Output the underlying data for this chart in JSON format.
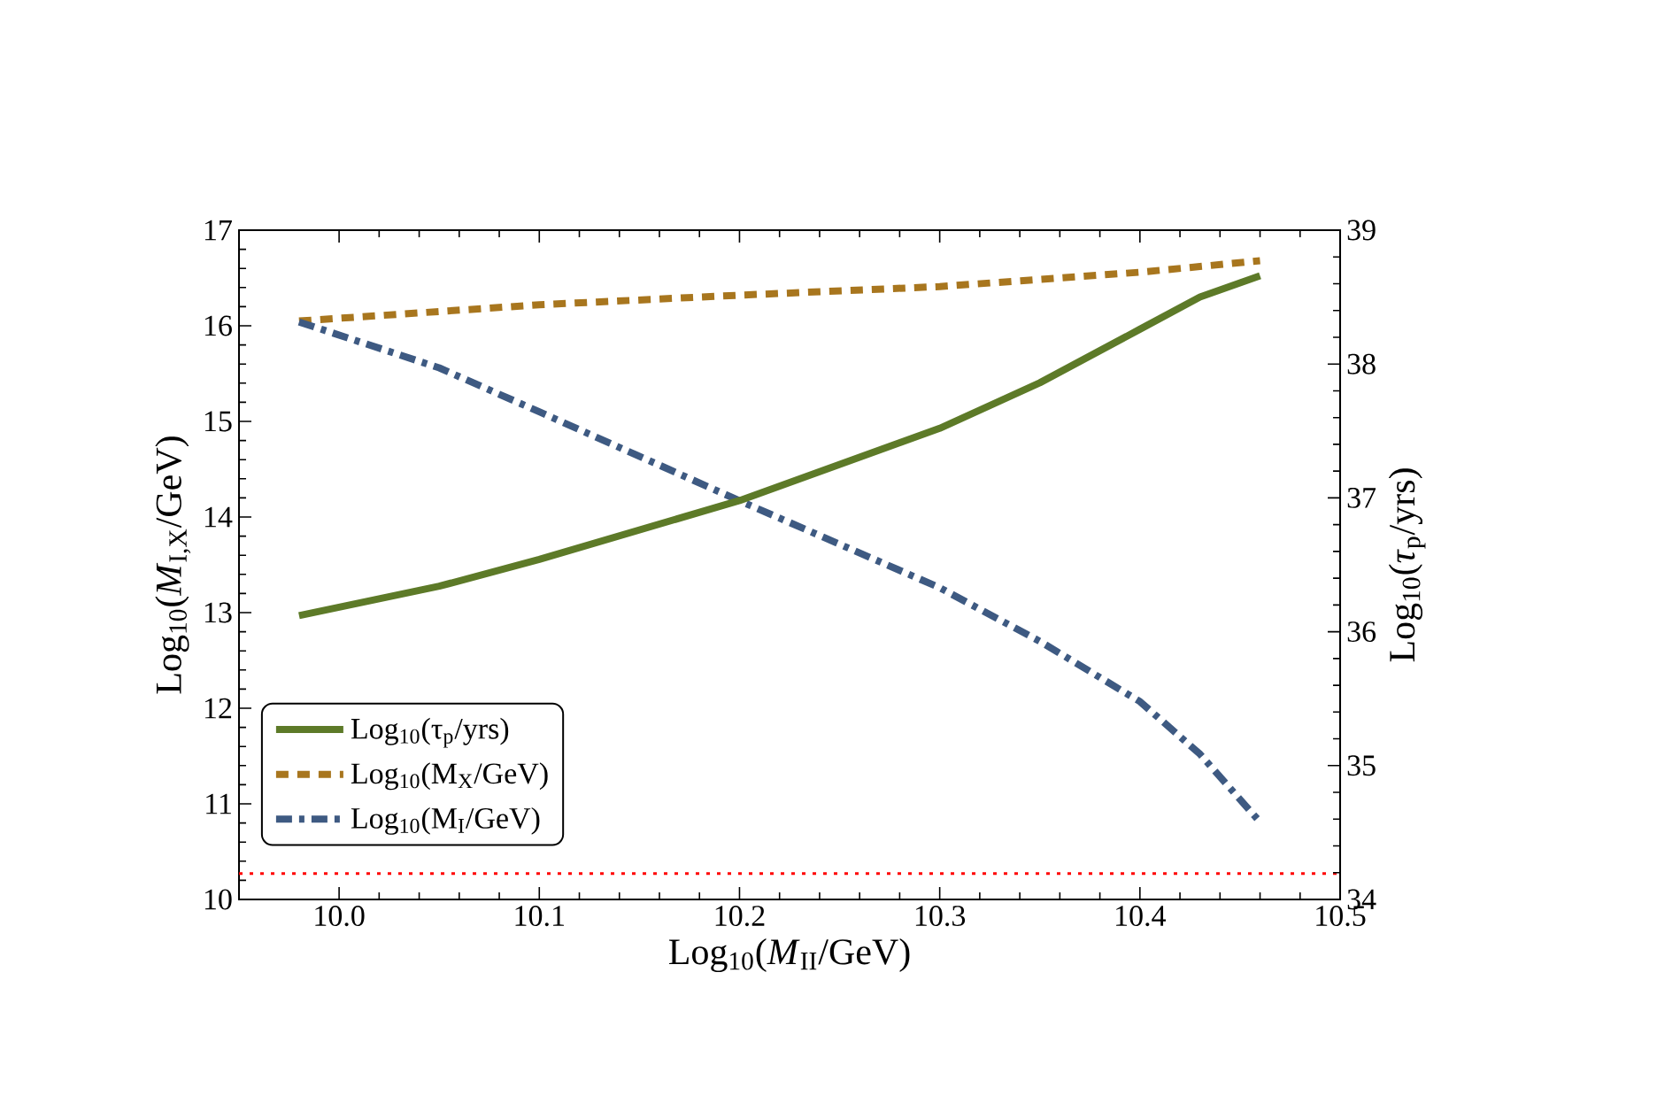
{
  "chart_data": {
    "type": "line",
    "xlabel": "Log$_{10}$(*M*$_{II}$/GeV)",
    "ylabel": "Log$_{10}$(*M*$_{I,X}$/GeV)",
    "y2label": "Log$_{10}$(*τ*$_{p}$/yrs)",
    "xlim": [
      9.95,
      10.5
    ],
    "xticks": [
      {
        "value": 10.0,
        "label": "10.0"
      },
      10.1,
      10.2,
      10.3,
      10.4,
      10.5
    ],
    "ylim": [
      10,
      17
    ],
    "yticks": [
      10,
      11,
      12,
      13,
      14,
      15,
      16,
      17
    ],
    "y2lim": [
      34,
      39
    ],
    "y2ticks": [
      34,
      35,
      36,
      37,
      38,
      39
    ],
    "legend": "bottom left",
    "series": [
      {
        "name": "Log$_{10}$(τ$_{p}$/yrs)",
        "color": "#5d7a28",
        "line_style": "solid",
        "axis": "y2",
        "x": [
          9.98,
          10.05,
          10.1,
          10.2,
          10.3,
          10.35,
          10.4,
          10.43,
          10.46
        ],
        "values": [
          36.12,
          36.34,
          36.54,
          36.98,
          37.52,
          37.86,
          38.26,
          38.5,
          38.66
        ]
      },
      {
        "name": "Log$_{10}$(M$_{X}$/GeV)",
        "color": "#a8761e",
        "line_style": "dashed",
        "x": [
          9.98,
          10.1,
          10.2,
          10.3,
          10.4,
          10.46
        ],
        "values": [
          16.05,
          16.22,
          16.32,
          16.41,
          16.56,
          16.68
        ]
      },
      {
        "name": "Log$_{10}$(M$_{I}$/GeV)",
        "color": "#3e5a82",
        "line_style": "dashdot",
        "x": [
          9.98,
          10.05,
          10.1,
          10.2,
          10.3,
          10.35,
          10.4,
          10.43,
          10.46
        ],
        "values": [
          16.04,
          15.56,
          15.1,
          14.17,
          13.26,
          12.7,
          12.07,
          11.52,
          10.81
        ]
      }
    ],
    "ref_lines": [
      {
        "axis": "y",
        "value": 10.27,
        "color": "#ff0000",
        "line_style": "dotted"
      }
    ]
  }
}
